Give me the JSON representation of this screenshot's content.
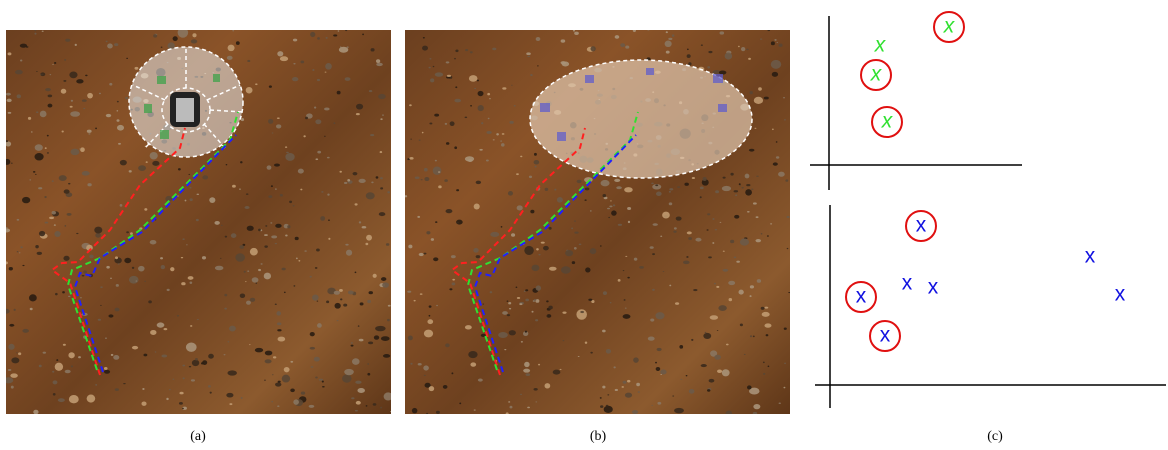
{
  "captions": [
    "(a)",
    "(b)",
    "(c)"
  ],
  "panel_c": {
    "mark_label": "x"
  }
}
